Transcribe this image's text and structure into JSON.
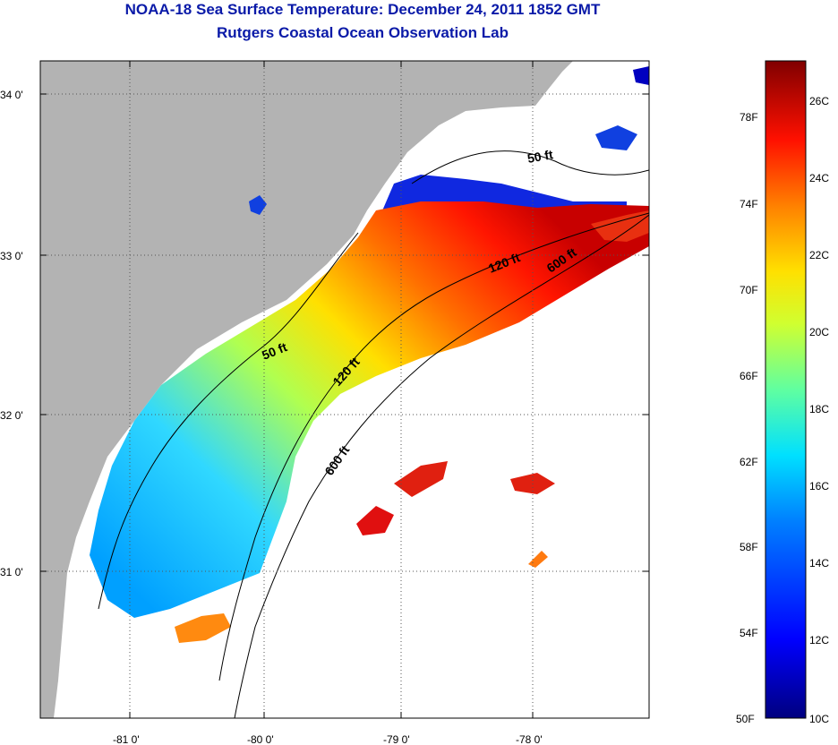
{
  "title": "NOAA-18 Sea Surface Temperature:  December 24, 2011 1852 GMT",
  "subtitle": "Rutgers Coastal Ocean Observation Lab",
  "axes": {
    "lat_labels": [
      "34 0'",
      "33 0'",
      "32 0'",
      "31 0'"
    ],
    "lon_labels": [
      "-81 0'",
      "-80 0'",
      "-79 0'",
      "-78 0'"
    ]
  },
  "contours": [
    "50 ft",
    "50 ft",
    "120 ft",
    "120 ft",
    "600 ft",
    "600 ft"
  ],
  "colorbar": {
    "fahrenheit": [
      "78F",
      "74F",
      "70F",
      "66F",
      "62F",
      "58F",
      "54F",
      "50F"
    ],
    "celsius": [
      "26C",
      "24C",
      "22C",
      "20C",
      "18C",
      "16C",
      "14C",
      "12C",
      "10C"
    ]
  },
  "colors": {
    "title": "#0a1aa8",
    "land": "#b3b3b3",
    "no_data": "#ffffff"
  }
}
